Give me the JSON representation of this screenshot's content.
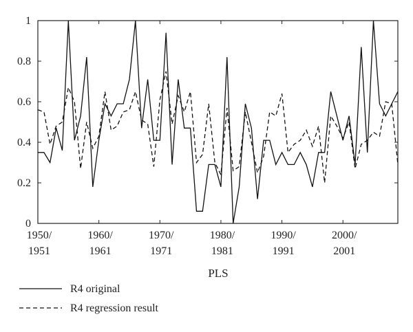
{
  "chart_data": {
    "type": "line",
    "title": "",
    "xlabel": "PLS",
    "ylabel": "",
    "xlim": [
      1950,
      2009
    ],
    "ylim": [
      0,
      1
    ],
    "yticks": [
      0,
      0.2,
      0.4,
      0.6,
      0.8,
      1
    ],
    "ytick_labels": [
      "0",
      "0.2",
      "0.4",
      "0.6",
      "0.8",
      "1"
    ],
    "xticks": [
      {
        "x": 1950,
        "line1": "1950/",
        "line2": "1951"
      },
      {
        "x": 1960,
        "line1": "1960/",
        "line2": "1961"
      },
      {
        "x": 1970,
        "line1": "1970/",
        "line2": "1971"
      },
      {
        "x": 1980,
        "line1": "1980/",
        "line2": "1981"
      },
      {
        "x": 1990,
        "line1": "1990/",
        "line2": "1991"
      },
      {
        "x": 2000,
        "line1": "2000/",
        "line2": "2001"
      }
    ],
    "grid": false,
    "legend_position": "bottom-left",
    "x": [
      1950,
      1951,
      1952,
      1953,
      1954,
      1955,
      1956,
      1957,
      1958,
      1959,
      1960,
      1961,
      1962,
      1963,
      1964,
      1965,
      1966,
      1967,
      1968,
      1969,
      1970,
      1971,
      1972,
      1973,
      1974,
      1975,
      1976,
      1977,
      1978,
      1979,
      1980,
      1981,
      1982,
      1983,
      1984,
      1985,
      1986,
      1987,
      1988,
      1989,
      1990,
      1991,
      1992,
      1993,
      1994,
      1995,
      1996,
      1997,
      1998,
      1999,
      2000,
      2001,
      2002,
      2003,
      2004,
      2005,
      2006,
      2007,
      2008,
      2009
    ],
    "series": [
      {
        "name": "R4 original",
        "style": "solid",
        "values": [
          0.35,
          0.35,
          0.3,
          0.47,
          0.36,
          1.0,
          0.41,
          0.53,
          0.82,
          0.18,
          0.41,
          0.59,
          0.53,
          0.59,
          0.59,
          0.71,
          1.0,
          0.47,
          0.71,
          0.41,
          0.41,
          0.94,
          0.29,
          0.71,
          0.47,
          0.47,
          0.06,
          0.06,
          0.29,
          0.29,
          0.18,
          0.82,
          0.0,
          0.18,
          0.59,
          0.47,
          0.12,
          0.41,
          0.41,
          0.29,
          0.35,
          0.29,
          0.29,
          0.35,
          0.29,
          0.18,
          0.35,
          0.35,
          0.65,
          0.53,
          0.41,
          0.53,
          0.29,
          0.87,
          0.35,
          1.0,
          0.59,
          0.53,
          0.59,
          0.65
        ]
      },
      {
        "name": "R4 regression result",
        "style": "dashed",
        "values": [
          0.56,
          0.55,
          0.39,
          0.48,
          0.5,
          0.67,
          0.6,
          0.27,
          0.5,
          0.37,
          0.43,
          0.65,
          0.46,
          0.48,
          0.55,
          0.56,
          0.65,
          0.51,
          0.49,
          0.28,
          0.61,
          0.75,
          0.49,
          0.63,
          0.55,
          0.65,
          0.3,
          0.34,
          0.59,
          0.3,
          0.24,
          0.57,
          0.26,
          0.28,
          0.55,
          0.4,
          0.25,
          0.33,
          0.55,
          0.53,
          0.64,
          0.35,
          0.39,
          0.41,
          0.46,
          0.38,
          0.48,
          0.2,
          0.53,
          0.48,
          0.42,
          0.5,
          0.27,
          0.39,
          0.41,
          0.45,
          0.43,
          0.6,
          0.59,
          0.29
        ]
      }
    ]
  }
}
